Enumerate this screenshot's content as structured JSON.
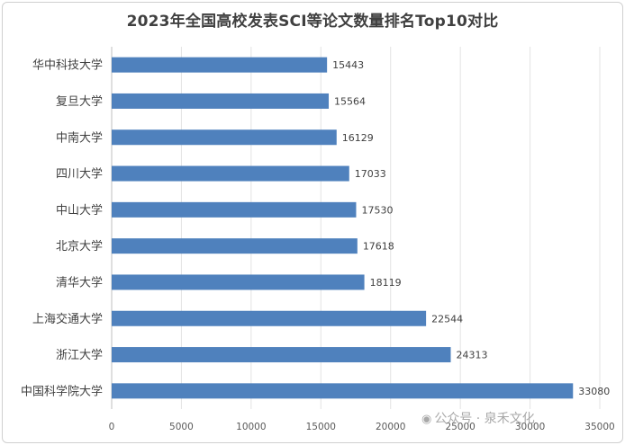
{
  "chart_data": {
    "type": "bar",
    "orientation": "horizontal",
    "title": "2023年全国高校发表SCI等论文数量排名Top10对比",
    "categories": [
      "华中科技大学",
      "复旦大学",
      "中南大学",
      "四川大学",
      "中山大学",
      "北京大学",
      "清华大学",
      "上海交通大学",
      "浙江大学",
      "中国科学院大学"
    ],
    "values": [
      15443,
      15564,
      16129,
      17033,
      17530,
      17618,
      18119,
      22544,
      24313,
      33080
    ],
    "x_ticks": [
      "0",
      "5000",
      "10000",
      "15000",
      "20000",
      "25000",
      "30000",
      "35000"
    ],
    "xlim": [
      0,
      35000
    ],
    "xlabel": "",
    "ylabel": "",
    "grid": true,
    "bar_color": "#4f81bd",
    "data_labels": true
  },
  "watermark": {
    "text": "公众号 · 泉禾文化",
    "icon": "wechat-icon"
  }
}
